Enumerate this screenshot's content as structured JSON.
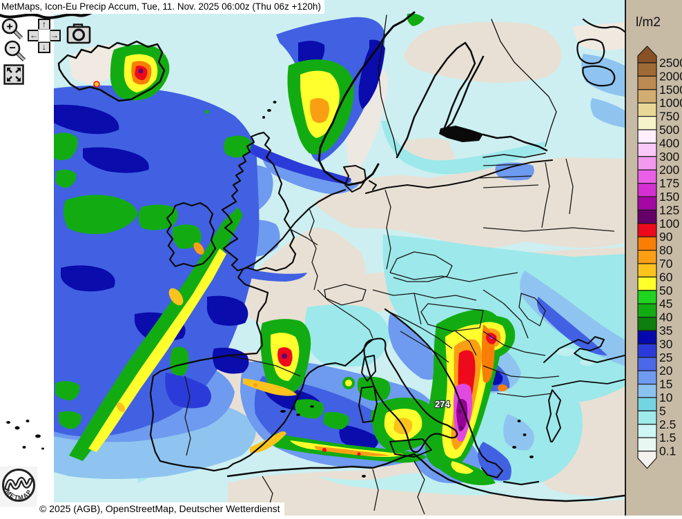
{
  "header": {
    "title": "MetMaps, Icon-Eu Precip Accum, Tue, 11. Nov. 2025 06:00z (Thu 06z +120h)"
  },
  "attribution": {
    "text": "© 2025 (AGB), OpenStreetMap, Deutscher Wetterdienst"
  },
  "logo": {
    "label": "METMAPS"
  },
  "controls": {
    "zoom_in_glyph": "+",
    "zoom_out_glyph": "−",
    "pan_up_glyph": "↑",
    "pan_down_glyph": "↓",
    "pan_left_glyph": "←",
    "pan_right_glyph": "→"
  },
  "map": {
    "max_annotation": "274"
  },
  "legend": {
    "unit": "l/m2",
    "panel_bg": "#C8BBA6",
    "top_arrow_color": "#8A5126",
    "bottom_arrow_color": "#F4F2EC",
    "boundaries": [
      {
        "label": "2500",
        "block_below": "#A06A36"
      },
      {
        "label": "2000",
        "block_below": "#BC8A52"
      },
      {
        "label": "1500",
        "block_below": "#D2AC70"
      },
      {
        "label": "1000",
        "block_below": "#E8D898"
      },
      {
        "label": "750",
        "block_below": "#F6F2CA"
      },
      {
        "label": "500",
        "block_below": "#FFEFFF"
      },
      {
        "label": "400",
        "block_below": "#FBC8FA"
      },
      {
        "label": "300",
        "block_below": "#F39AF0"
      },
      {
        "label": "200",
        "block_below": "#EA5FE8"
      },
      {
        "label": "175",
        "block_below": "#D42FD4"
      },
      {
        "label": "150",
        "block_below": "#A507A5"
      },
      {
        "label": "125",
        "block_below": "#650069"
      },
      {
        "label": "100",
        "block_below": "#EE0A1C"
      },
      {
        "label": "90",
        "block_below": "#F87E06"
      },
      {
        "label": "80",
        "block_below": "#FA9F14"
      },
      {
        "label": "70",
        "block_below": "#FCC31C"
      },
      {
        "label": "60",
        "block_below": "#FFFF2A"
      },
      {
        "label": "50",
        "block_below": "#1ED41E"
      },
      {
        "label": "45",
        "block_below": "#12AC12"
      },
      {
        "label": "40",
        "block_below": "#0C7F0C"
      },
      {
        "label": "35",
        "block_below": "#0508AC"
      },
      {
        "label": "30",
        "block_below": "#2B3BD9"
      },
      {
        "label": "25",
        "block_below": "#4A68E8"
      },
      {
        "label": "20",
        "block_below": "#6E9AEF"
      },
      {
        "label": "15",
        "block_below": "#8CC2F0"
      },
      {
        "label": "10",
        "block_below": "#74D5E2"
      },
      {
        "label": "5",
        "block_below": "#9FEAEA"
      },
      {
        "label": "2.5",
        "block_below": "#CDF7F5"
      },
      {
        "label": "1.5",
        "block_below": "#E9F7F3"
      },
      {
        "label": "0.1",
        "block_below": null
      }
    ]
  }
}
